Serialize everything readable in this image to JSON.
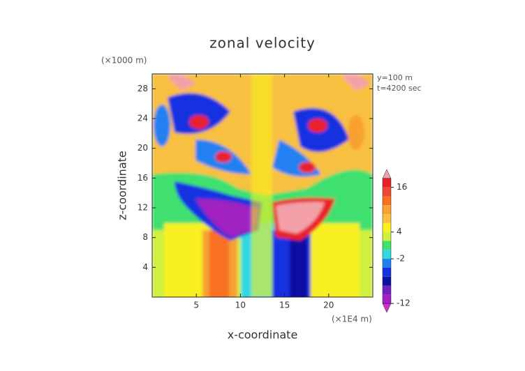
{
  "chart_data": {
    "type": "contour",
    "title": "zonal velocity",
    "x_label": "x-coordinate",
    "y_label": "z-coordinate",
    "x_unit": "(×1E4 m)",
    "y_unit": "(×1000 m)",
    "annotations": [
      "y=100 m",
      "t=4200 sec"
    ],
    "xlim": [
      0,
      25
    ],
    "xticks": [
      5,
      10,
      15,
      20
    ],
    "ylim": [
      0,
      30
    ],
    "yticks": [
      4,
      8,
      12,
      16,
      20,
      24,
      28
    ],
    "colorbar": {
      "levels": [
        20,
        16,
        12,
        10,
        8,
        6,
        4,
        2,
        0,
        -2,
        -4,
        -6,
        -8,
        -10,
        -12,
        -16,
        -20
      ],
      "colors": [
        "#f4a0a8",
        "#e8202a",
        "#f04830",
        "#f87020",
        "#f8a030",
        "#f8c040",
        "#f8f020",
        "#d0f040",
        "#40e070",
        "#30d8e0",
        "#2080f0",
        "#1830e0",
        "#1010a0",
        "#7020c0",
        "#a020c0",
        "#d030d0"
      ],
      "ticks": [
        16,
        4,
        -2,
        -12
      ]
    }
  }
}
